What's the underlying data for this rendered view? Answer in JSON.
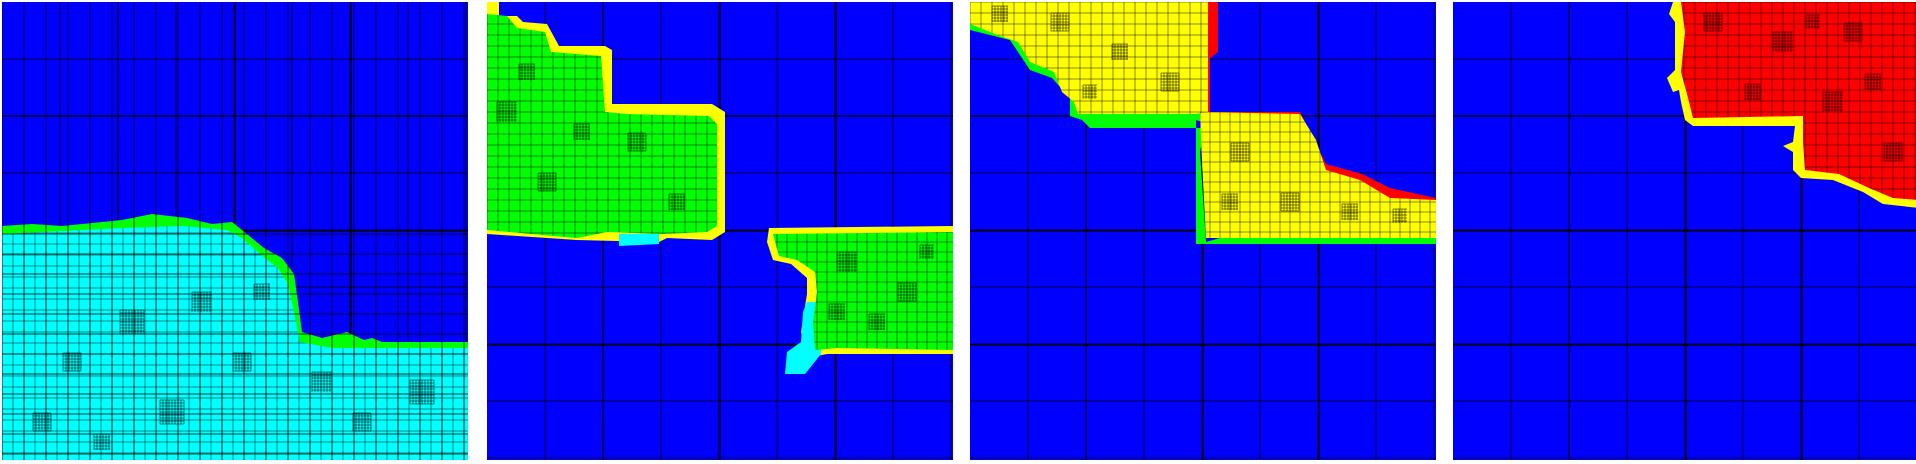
{
  "figure": {
    "kind": "adaptive quadtree mesh panels",
    "panel_count": 4
  },
  "colors": {
    "background": "#0000ff",
    "cyan": "#00ffff",
    "green": "#00ff00",
    "yellow": "#ffff00",
    "red": "#ff0000",
    "grid_line": "#000000"
  },
  "panels": [
    {
      "name": "panel-1",
      "regions": [
        "cyan",
        "green"
      ]
    },
    {
      "name": "panel-2",
      "regions": [
        "green",
        "cyan",
        "yellow"
      ]
    },
    {
      "name": "panel-3",
      "regions": [
        "yellow",
        "green",
        "red"
      ]
    },
    {
      "name": "panel-4",
      "regions": [
        "red",
        "yellow"
      ]
    }
  ]
}
